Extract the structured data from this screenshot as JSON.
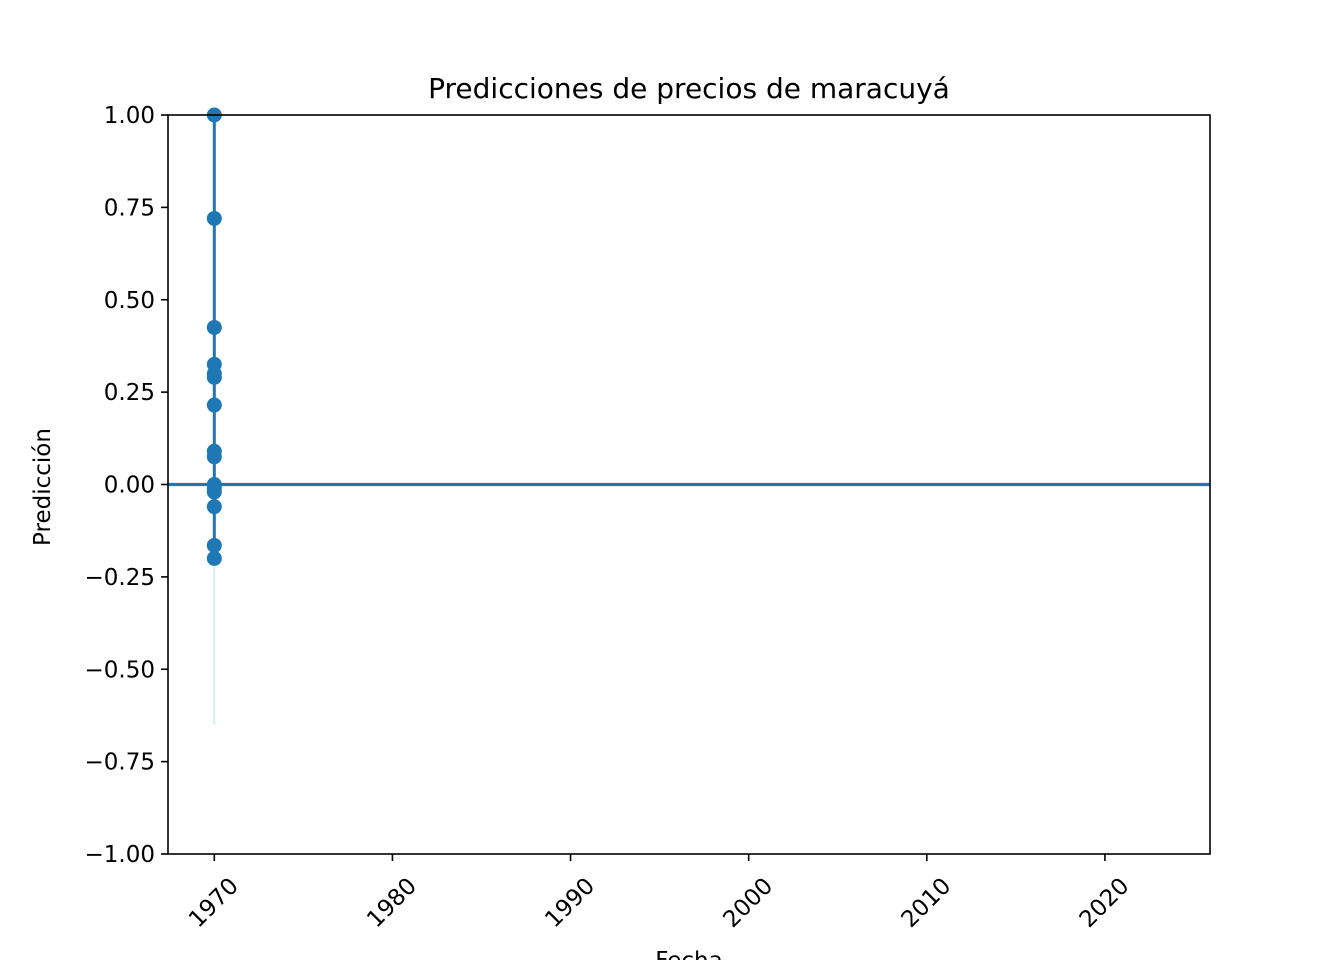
{
  "chart_data": {
    "type": "line",
    "title": "Predicciones de precios de maracuyá",
    "xlabel": "Fecha",
    "ylabel": "Predicción",
    "xlim": [
      1967.4,
      2025.9
    ],
    "ylim": [
      -1.0,
      1.0
    ],
    "x_ticks": [
      1970,
      1980,
      1990,
      2000,
      2010,
      2020
    ],
    "x_tick_labels": [
      "1970",
      "1980",
      "1990",
      "2000",
      "2010",
      "2020"
    ],
    "y_ticks": [
      1.0,
      0.75,
      0.5,
      0.25,
      0.0,
      -0.25,
      -0.5,
      -0.75,
      -1.0
    ],
    "y_tick_labels": [
      "1.00",
      "0.75",
      "0.50",
      "0.25",
      "0.00",
      "−0.25",
      "−0.50",
      "−0.75",
      "−1.00"
    ],
    "grid": false,
    "colors": {
      "series": "#1f77b4",
      "band": "#d4eeee",
      "axes": "#000000"
    },
    "series": [
      {
        "marker": "circle",
        "x": [
          "1970-01-01",
          "1970-01-01",
          "1970-01-01",
          "1970-01-01",
          "1970-01-01",
          "1970-01-01",
          "1970-01-01",
          "1970-01-01",
          "1970-01-01",
          "1970-01-01",
          "1970-01-01",
          "1970-01-01",
          "1970-01-01",
          "1970-01-01",
          "1970-01-01"
        ],
        "values": [
          1.0,
          0.72,
          0.425,
          0.325,
          0.3,
          0.29,
          0.215,
          0.09,
          0.075,
          -0.01,
          -0.02,
          -0.06,
          -0.165,
          -0.2,
          0.0
        ]
      }
    ],
    "reference_lines": [
      {
        "orientation": "horizontal",
        "y": 0.0
      }
    ],
    "bands": [
      {
        "x": "1970-01-01",
        "y_range": [
          -0.65,
          1.0
        ]
      }
    ]
  }
}
